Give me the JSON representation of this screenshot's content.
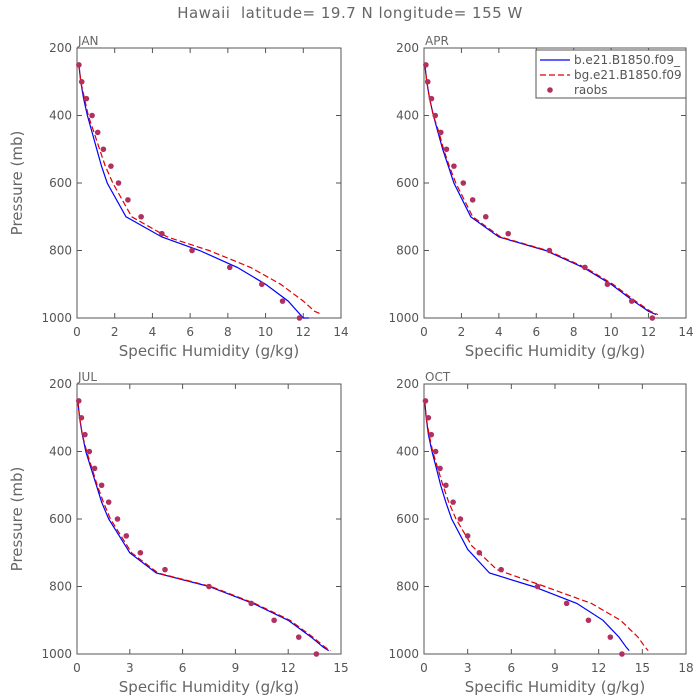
{
  "figure": {
    "title": "Hawaii  latitude= 19.7 N longitude= 155 W"
  },
  "legend": {
    "entries": [
      {
        "label": "b.e21.B1850.f09_",
        "color": "#0000ff",
        "style": "solid"
      },
      {
        "label": "bg.e21.B1850.f09",
        "color": "#dd0000",
        "style": "dashed"
      },
      {
        "label": "raobs",
        "color": "#b03060",
        "style": "marker"
      }
    ],
    "placement": "top-right of APR panel"
  },
  "chart_data": [
    {
      "type": "line",
      "panel_label": "JAN",
      "xlabel": "Specific Humidity (g/kg)",
      "ylabel": "Pressure (mb)",
      "xlim": [
        0,
        14
      ],
      "xticks": [
        "0",
        "2",
        "4",
        "6",
        "8",
        "10",
        "12",
        "14"
      ],
      "ylim": [
        200,
        1000
      ],
      "yticks": [
        "200",
        "400",
        "600",
        "800",
        "1000"
      ],
      "y_inverted": true,
      "series": [
        {
          "name": "b.e21.B1850.f09_",
          "color": "#0000ff",
          "dashed": false,
          "x": [
            0.1,
            0.2,
            0.35,
            0.55,
            0.8,
            1.05,
            1.3,
            1.6,
            2.6,
            4.5,
            6.5,
            8.5,
            10.0,
            11.2,
            12.0,
            12.3
          ],
          "y": [
            250,
            300,
            350,
            400,
            450,
            500,
            550,
            600,
            700,
            760,
            800,
            850,
            900,
            950,
            1000,
            1000
          ]
        },
        {
          "name": "bg.e21.B1850.f09",
          "color": "#dd0000",
          "dashed": false,
          "x": [
            0.1,
            0.2,
            0.4,
            0.6,
            0.9,
            1.2,
            1.5,
            1.9,
            2.9,
            4.8,
            7.0,
            9.2,
            10.8,
            12.0,
            12.6,
            13.0
          ],
          "y": [
            250,
            300,
            350,
            400,
            450,
            500,
            550,
            600,
            700,
            760,
            800,
            850,
            900,
            950,
            980,
            990
          ]
        },
        {
          "name": "raobs",
          "color": "#b03060",
          "markers": true,
          "x": [
            0.1,
            0.25,
            0.5,
            0.8,
            1.1,
            1.4,
            1.8,
            2.2,
            2.7,
            3.4,
            4.5,
            6.1,
            8.1,
            9.8,
            10.9,
            11.8
          ],
          "y": [
            250,
            300,
            350,
            400,
            450,
            500,
            550,
            600,
            650,
            700,
            750,
            800,
            850,
            900,
            950,
            1000
          ]
        }
      ]
    },
    {
      "type": "line",
      "panel_label": "APR",
      "xlabel": "Specific Humidity (g/kg)",
      "ylabel": "",
      "xlim": [
        0,
        14
      ],
      "xticks": [
        "0",
        "2",
        "4",
        "6",
        "8",
        "10",
        "12",
        "14"
      ],
      "ylim": [
        200,
        1000
      ],
      "yticks": [
        "200",
        "400",
        "600",
        "800",
        "1000"
      ],
      "y_inverted": true,
      "series": [
        {
          "name": "b.e21.B1850.f09_",
          "color": "#0000ff",
          "x": [
            0.05,
            0.15,
            0.3,
            0.5,
            0.75,
            1.0,
            1.3,
            1.6,
            2.5,
            4.0,
            6.5,
            8.5,
            10.0,
            11.2,
            12.0,
            12.4
          ],
          "y": [
            250,
            300,
            350,
            400,
            450,
            500,
            550,
            600,
            700,
            760,
            800,
            850,
            900,
            950,
            980,
            990
          ]
        },
        {
          "name": "bg.e21.B1850.f09",
          "color": "#dd0000",
          "x": [
            0.05,
            0.15,
            0.3,
            0.5,
            0.8,
            1.05,
            1.35,
            1.7,
            2.6,
            4.1,
            6.6,
            8.6,
            10.1,
            11.3,
            12.1,
            12.5
          ],
          "y": [
            250,
            300,
            350,
            400,
            450,
            500,
            550,
            600,
            700,
            760,
            800,
            850,
            900,
            950,
            980,
            990
          ]
        },
        {
          "name": "raobs",
          "color": "#b03060",
          "markers": true,
          "x": [
            0.1,
            0.2,
            0.4,
            0.6,
            0.9,
            1.2,
            1.6,
            2.1,
            2.6,
            3.3,
            4.5,
            6.7,
            8.6,
            9.8,
            11.1,
            12.2
          ],
          "y": [
            250,
            300,
            350,
            400,
            450,
            500,
            550,
            600,
            650,
            700,
            750,
            800,
            850,
            900,
            950,
            1000
          ]
        }
      ]
    },
    {
      "type": "line",
      "panel_label": "JUL",
      "xlabel": "Specific Humidity (g/kg)",
      "ylabel": "Pressure (mb)",
      "xlim": [
        0,
        15
      ],
      "xticks": [
        "0",
        "3",
        "6",
        "9",
        "12",
        "15"
      ],
      "ylim": [
        200,
        1000
      ],
      "yticks": [
        "200",
        "400",
        "600",
        "800",
        "1000"
      ],
      "y_inverted": true,
      "series": [
        {
          "name": "b.e21.B1850.f09_",
          "color": "#0000ff",
          "x": [
            0.05,
            0.15,
            0.3,
            0.5,
            0.8,
            1.1,
            1.4,
            1.8,
            3.0,
            4.5,
            7.5,
            10.0,
            12.0,
            13.3,
            14.0,
            14.3
          ],
          "y": [
            250,
            300,
            350,
            400,
            450,
            500,
            550,
            600,
            700,
            760,
            800,
            850,
            900,
            950,
            980,
            990
          ]
        },
        {
          "name": "bg.e21.B1850.f09",
          "color": "#dd0000",
          "x": [
            0.05,
            0.15,
            0.3,
            0.55,
            0.85,
            1.15,
            1.5,
            1.9,
            3.1,
            4.6,
            7.6,
            10.1,
            12.1,
            13.4,
            14.1,
            14.4
          ],
          "y": [
            250,
            300,
            350,
            400,
            450,
            500,
            550,
            600,
            700,
            760,
            800,
            850,
            900,
            950,
            980,
            990
          ]
        },
        {
          "name": "raobs",
          "color": "#b03060",
          "markers": true,
          "x": [
            0.1,
            0.25,
            0.45,
            0.7,
            1.0,
            1.4,
            1.8,
            2.3,
            2.8,
            3.6,
            5.0,
            7.5,
            9.9,
            11.2,
            12.6,
            13.6
          ],
          "y": [
            250,
            300,
            350,
            400,
            450,
            500,
            550,
            600,
            650,
            700,
            750,
            800,
            850,
            900,
            950,
            1000
          ]
        }
      ]
    },
    {
      "type": "line",
      "panel_label": "OCT",
      "xlabel": "Specific Humidity (g/kg)",
      "ylabel": "",
      "xlim": [
        0,
        18
      ],
      "xticks": [
        "0",
        "3",
        "6",
        "9",
        "12",
        "15",
        "18"
      ],
      "ylim": [
        200,
        1000
      ],
      "yticks": [
        "200",
        "400",
        "600",
        "800",
        "1000"
      ],
      "y_inverted": true,
      "series": [
        {
          "name": "b.e21.B1850.f09_",
          "color": "#0000ff",
          "x": [
            0.05,
            0.15,
            0.3,
            0.55,
            0.85,
            1.15,
            1.5,
            1.9,
            3.0,
            4.5,
            7.5,
            10.5,
            12.3,
            13.4,
            13.9,
            14.1
          ],
          "y": [
            250,
            300,
            350,
            400,
            450,
            500,
            550,
            600,
            690,
            760,
            800,
            850,
            900,
            950,
            980,
            990
          ]
        },
        {
          "name": "bg.e21.B1850.f09",
          "color": "#dd0000",
          "x": [
            0.05,
            0.15,
            0.35,
            0.6,
            0.95,
            1.3,
            1.7,
            2.2,
            3.3,
            5.0,
            8.3,
            11.5,
            13.5,
            14.7,
            15.2,
            15.4
          ],
          "y": [
            250,
            300,
            350,
            400,
            450,
            500,
            550,
            600,
            680,
            750,
            800,
            850,
            900,
            950,
            980,
            990
          ]
        },
        {
          "name": "raobs",
          "color": "#b03060",
          "markers": true,
          "x": [
            0.1,
            0.3,
            0.5,
            0.8,
            1.1,
            1.5,
            2.0,
            2.5,
            3.0,
            3.8,
            5.3,
            7.8,
            9.8,
            11.3,
            12.8,
            13.6
          ],
          "y": [
            250,
            300,
            350,
            400,
            450,
            500,
            550,
            600,
            650,
            700,
            750,
            800,
            850,
            900,
            950,
            1000
          ]
        }
      ]
    }
  ]
}
